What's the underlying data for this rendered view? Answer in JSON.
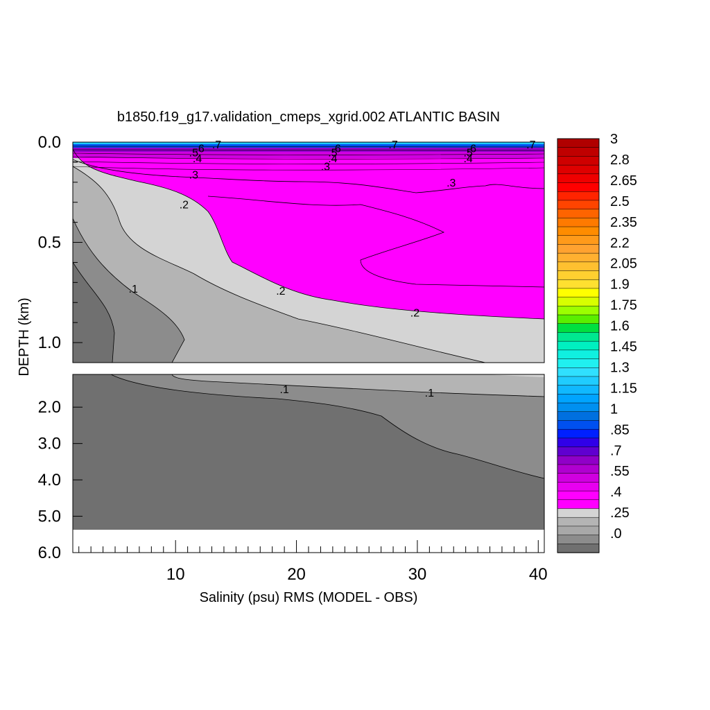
{
  "chart_data": {
    "type": "heatmap",
    "title": "b1850.f19_g17.validation_cmeps_xgrid.002 ATLANTIC BASIN",
    "xlabel": "Salinity (psu) RMS (MODEL - OBS)",
    "ylabel": "DEPTH (km)",
    "x_ticks": [
      "10",
      "20",
      "30",
      "40"
    ],
    "x_range": [
      1.5,
      40.5
    ],
    "upper_panel": {
      "y_range": [
        0.0,
        1.1
      ],
      "y_ticks": [
        "0.0",
        "0.5",
        "1.0"
      ]
    },
    "lower_panel": {
      "y_range": [
        1.1,
        6.0
      ],
      "y_ticks": [
        "2.0",
        "3.0",
        "4.0",
        "5.0",
        "6.0"
      ]
    },
    "colorbar": {
      "labels": [
        "3",
        "2.8",
        "2.65",
        "2.5",
        "2.35",
        "2.2",
        "2.05",
        "1.9",
        "1.75",
        "1.6",
        "1.45",
        "1.3",
        "1.15",
        "1",
        ".85",
        ".7",
        ".55",
        ".4",
        ".25",
        ".0"
      ],
      "min": 0.0,
      "max": 3.0,
      "colors_top_to_bottom": [
        "#b00000",
        "#bf0000",
        "#cf0000",
        "#df0000",
        "#ef0000",
        "#ff0000",
        "#ff2400",
        "#ff4400",
        "#ff6400",
        "#ff7a00",
        "#ff8c00",
        "#ff9a1a",
        "#ffa230",
        "#ffb030",
        "#ffc030",
        "#ffd030",
        "#ffe030",
        "#ffff00",
        "#d8ff00",
        "#9cff00",
        "#5aef00",
        "#00e040",
        "#00e890",
        "#00f0c0",
        "#10f0e0",
        "#20f0f0",
        "#30e0ff",
        "#20ccff",
        "#10b8ff",
        "#00a4ff",
        "#0090f0",
        "#0070e0",
        "#0050f0",
        "#0020ff",
        "#3000e8",
        "#6000d0",
        "#9000c8",
        "#b000d0",
        "#d000e0",
        "#e800f0",
        "#ff00ff",
        "#ff00ff",
        "#d4d4d4",
        "#b4b4b4",
        "#a8a8a8",
        "#8c8c8c",
        "#707070"
      ]
    },
    "fill_colors": {
      "magenta": "#ff00ff",
      "light_gray": "#d4d4d4",
      "mid_gray": "#b4b4b4",
      "gray": "#8c8c8c",
      "dark_gray": "#707070"
    },
    "contour_labels": [
      {
        "text": ".6",
        "x": 12.0,
        "depth": 0.03
      },
      {
        "text": ".5",
        "x": 11.5,
        "depth": 0.05
      },
      {
        "text": ".4",
        "x": 11.8,
        "depth": 0.08
      },
      {
        "text": ".7",
        "x": 13.4,
        "depth": 0.01
      },
      {
        "text": ".3",
        "x": 11.5,
        "depth": 0.16
      },
      {
        "text": ".2",
        "x": 10.7,
        "depth": 0.31
      },
      {
        "text": ".1",
        "x": 6.5,
        "depth": 0.73
      },
      {
        "text": ".6",
        "x": 23.3,
        "depth": 0.03
      },
      {
        "text": ".5",
        "x": 23.0,
        "depth": 0.05
      },
      {
        "text": ".4",
        "x": 23.0,
        "depth": 0.08
      },
      {
        "text": ".3",
        "x": 22.4,
        "depth": 0.12
      },
      {
        "text": ".2",
        "x": 18.7,
        "depth": 0.74
      },
      {
        "text": ".7",
        "x": 28.0,
        "depth": 0.01
      },
      {
        "text": ".6",
        "x": 34.5,
        "depth": 0.03
      },
      {
        "text": ".5",
        "x": 34.2,
        "depth": 0.05
      },
      {
        "text": ".4",
        "x": 34.2,
        "depth": 0.08
      },
      {
        "text": ".3",
        "x": 32.8,
        "depth": 0.2
      },
      {
        "text": ".2",
        "x": 29.8,
        "depth": 0.85
      },
      {
        "text": ".7",
        "x": 39.4,
        "depth": 0.01
      },
      {
        "text": ".1",
        "x": 19.0,
        "depth": 1.5
      },
      {
        "text": ".1",
        "x": 31.0,
        "depth": 1.6
      }
    ],
    "grid": false
  }
}
